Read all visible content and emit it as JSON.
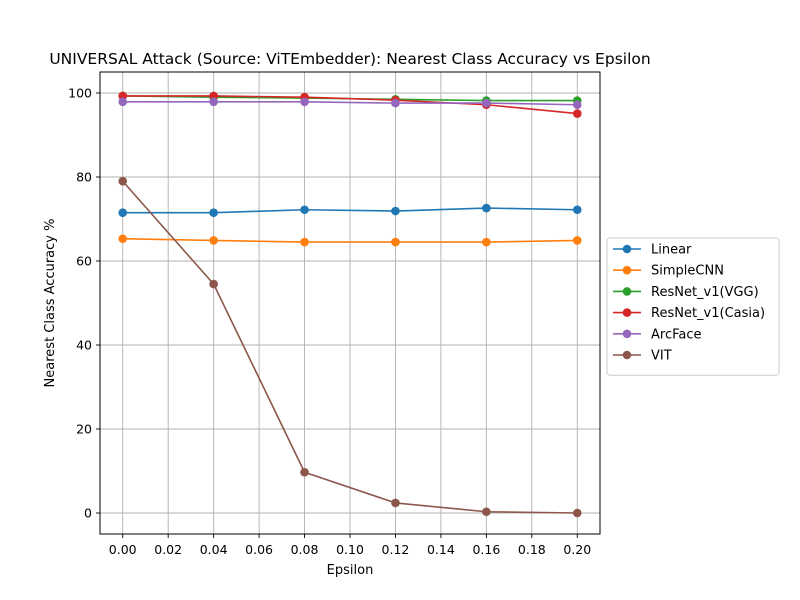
{
  "chart_data": {
    "type": "line",
    "title": "UNIVERSAL Attack (Source: ViTEmbedder): Nearest Class Accuracy vs Epsilon",
    "xlabel": "Epsilon",
    "ylabel": "Nearest Class Accuracy %",
    "xlim": [
      -0.01,
      0.21
    ],
    "ylim": [
      -5,
      105
    ],
    "xticks": [
      0.0,
      0.02,
      0.04,
      0.06,
      0.08,
      0.1,
      0.12,
      0.14,
      0.16,
      0.18,
      0.2
    ],
    "xtick_labels": [
      "0.00",
      "0.02",
      "0.04",
      "0.06",
      "0.08",
      "0.10",
      "0.12",
      "0.14",
      "0.16",
      "0.18",
      "0.20"
    ],
    "yticks": [
      0,
      20,
      40,
      60,
      80,
      100
    ],
    "ytick_labels": [
      "0",
      "20",
      "40",
      "60",
      "80",
      "100"
    ],
    "grid": true,
    "legend_position": "outside-right",
    "x": [
      0.0,
      0.04,
      0.08,
      0.12,
      0.16,
      0.2
    ],
    "series": [
      {
        "name": "Linear",
        "color": "#1f77b4",
        "values": [
          71.5,
          71.5,
          72.2,
          71.9,
          72.6,
          72.2
        ]
      },
      {
        "name": "SimpleCNN",
        "color": "#ff7f0e",
        "values": [
          65.3,
          64.9,
          64.5,
          64.5,
          64.5,
          64.9
        ]
      },
      {
        "name": "ResNet_v1(VGG)",
        "color": "#2ca02c",
        "values": [
          99.3,
          99.0,
          98.8,
          98.5,
          98.2,
          98.2
        ]
      },
      {
        "name": "ResNet_v1(Casia)",
        "color": "#d62728",
        "values": [
          99.3,
          99.3,
          99.0,
          98.3,
          97.2,
          95.1
        ]
      },
      {
        "name": "ArcFace",
        "color": "#9467bd",
        "values": [
          97.9,
          97.9,
          97.9,
          97.6,
          97.6,
          97.2
        ]
      },
      {
        "name": "VIT",
        "color": "#8c564b",
        "values": [
          79.0,
          54.5,
          9.7,
          2.4,
          0.3,
          0.0
        ]
      }
    ]
  }
}
